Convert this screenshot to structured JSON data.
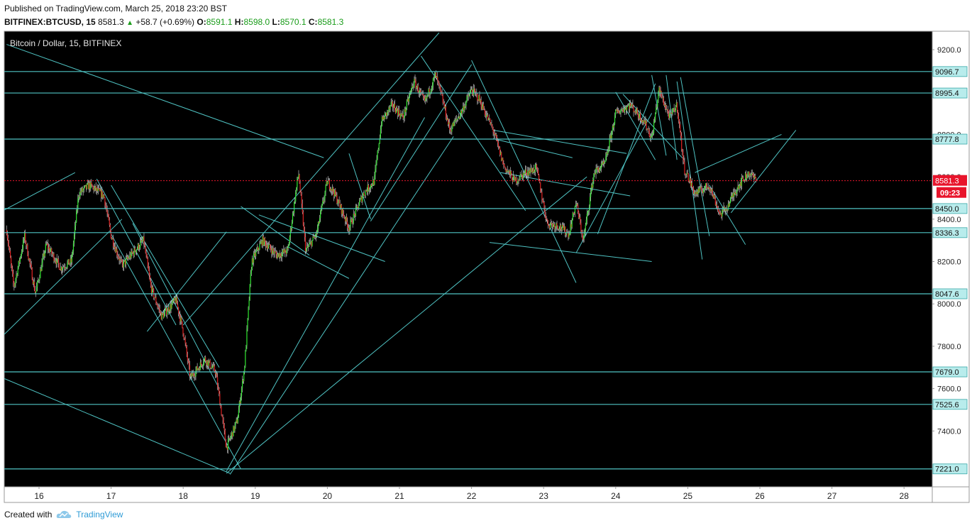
{
  "header": {
    "published": "Published on TradingView.com, March 25, 2018 23:20 BST",
    "symbol": "BITFINEX:BTCUSD, 15",
    "last": "8581.3",
    "change": "+58.7 (+0.69%)",
    "o_label": "O:",
    "o_value": "8591.1",
    "h_label": "H:",
    "h_value": "8598.0",
    "l_label": "L:",
    "l_value": "8570.1",
    "c_label": "C:",
    "c_value": "8581.3"
  },
  "footer": {
    "created_with": "Created with",
    "brand": "TradingView"
  },
  "colors": {
    "background": "#000000",
    "up": "#2ee62e",
    "down": "#e02020",
    "line": "#4fc3c3",
    "price_label": "#e8142b",
    "axis_text": "#222222"
  },
  "chart_data": {
    "type": "candlestick",
    "title": "Bitcoin / Dollar, 15, BITFINEX",
    "x_ticks": [
      "16",
      "17",
      "18",
      "19",
      "20",
      "21",
      "22",
      "23",
      "24",
      "25",
      "26",
      "27",
      "28"
    ],
    "y_ticks": [
      9200.0,
      8800.0,
      8600.0,
      8400.0,
      8200.0,
      8000.0,
      7800.0,
      7600.0,
      7400.0
    ],
    "y_tick_labels": [
      "9200.0",
      "8800.0",
      "8600.0",
      "8400.0",
      "8200.0",
      "8000.0",
      "7800.0",
      "7600.0",
      "7400.0"
    ],
    "ylim": [
      7195,
      9270
    ],
    "xlim": [
      15.5,
      28.5
    ],
    "horizontal_levels": [
      {
        "value": 9096.7,
        "label": "9096.7"
      },
      {
        "value": 8995.4,
        "label": "8995.4"
      },
      {
        "value": 8777.8,
        "label": "8777.8"
      },
      {
        "value": 8450.0,
        "label": "8450.0"
      },
      {
        "value": 8336.3,
        "label": "8336.3"
      },
      {
        "value": 8047.6,
        "label": "8047.6"
      },
      {
        "value": 7679.0,
        "label": "7679.0"
      },
      {
        "value": 7525.6,
        "label": "7525.6"
      },
      {
        "value": 7221.0,
        "label": "7221.0"
      }
    ],
    "current_price": {
      "value": 8581.3,
      "label": "8581.3",
      "countdown": "09:23"
    },
    "price_path": [
      [
        15.55,
        8350
      ],
      [
        15.65,
        8080
      ],
      [
        15.8,
        8320
      ],
      [
        15.95,
        8050
      ],
      [
        16.1,
        8280
      ],
      [
        16.3,
        8170
      ],
      [
        16.45,
        8200
      ],
      [
        16.55,
        8520
      ],
      [
        16.7,
        8560
      ],
      [
        16.9,
        8510
      ],
      [
        17.0,
        8320
      ],
      [
        17.15,
        8180
      ],
      [
        17.3,
        8240
      ],
      [
        17.45,
        8300
      ],
      [
        17.55,
        8080
      ],
      [
        17.7,
        7940
      ],
      [
        17.9,
        8020
      ],
      [
        18.0,
        7870
      ],
      [
        18.1,
        7650
      ],
      [
        18.3,
        7740
      ],
      [
        18.45,
        7680
      ],
      [
        18.6,
        7320
      ],
      [
        18.75,
        7450
      ],
      [
        18.85,
        7700
      ],
      [
        18.95,
        8200
      ],
      [
        19.1,
        8300
      ],
      [
        19.3,
        8230
      ],
      [
        19.45,
        8250
      ],
      [
        19.6,
        8620
      ],
      [
        19.7,
        8250
      ],
      [
        19.85,
        8330
      ],
      [
        20.0,
        8580
      ],
      [
        20.1,
        8520
      ],
      [
        20.3,
        8360
      ],
      [
        20.5,
        8520
      ],
      [
        20.65,
        8580
      ],
      [
        20.75,
        8860
      ],
      [
        20.9,
        8940
      ],
      [
        21.05,
        8880
      ],
      [
        21.2,
        9050
      ],
      [
        21.35,
        8950
      ],
      [
        21.5,
        9080
      ],
      [
        21.6,
        8960
      ],
      [
        21.7,
        8820
      ],
      [
        21.85,
        8900
      ],
      [
        22.0,
        9010
      ],
      [
        22.1,
        8970
      ],
      [
        22.3,
        8820
      ],
      [
        22.45,
        8650
      ],
      [
        22.6,
        8580
      ],
      [
        22.75,
        8620
      ],
      [
        22.9,
        8640
      ],
      [
        23.05,
        8380
      ],
      [
        23.2,
        8370
      ],
      [
        23.35,
        8330
      ],
      [
        23.45,
        8480
      ],
      [
        23.55,
        8300
      ],
      [
        23.7,
        8620
      ],
      [
        23.85,
        8660
      ],
      [
        24.0,
        8900
      ],
      [
        24.2,
        8940
      ],
      [
        24.4,
        8860
      ],
      [
        24.5,
        8780
      ],
      [
        24.6,
        9010
      ],
      [
        24.75,
        8880
      ],
      [
        24.85,
        8940
      ],
      [
        24.95,
        8640
      ],
      [
        25.1,
        8520
      ],
      [
        25.3,
        8560
      ],
      [
        25.45,
        8420
      ],
      [
        25.55,
        8460
      ],
      [
        25.7,
        8560
      ],
      [
        25.85,
        8620
      ],
      [
        25.95,
        8581.3
      ]
    ],
    "trend_lines": [
      [
        [
          15.55,
          9225
        ],
        [
          19.95,
          8690
        ]
      ],
      [
        [
          18.0,
          7900
        ],
        [
          21.55,
          9280
        ]
      ],
      [
        [
          15.5,
          7850
        ],
        [
          17.15,
          8400
        ]
      ],
      [
        [
          15.5,
          8440
        ],
        [
          16.5,
          8620
        ]
      ],
      [
        [
          15.5,
          7650
        ],
        [
          18.65,
          7200
        ]
      ],
      [
        [
          16.8,
          8590
        ],
        [
          17.9,
          7900
        ]
      ],
      [
        [
          17.0,
          8560
        ],
        [
          18.5,
          7700
        ]
      ],
      [
        [
          17.0,
          8330
        ],
        [
          18.8,
          7220
        ]
      ],
      [
        [
          17.3,
          8380
        ],
        [
          18.5,
          7600
        ]
      ],
      [
        [
          18.6,
          7210
        ],
        [
          21.35,
          8880
        ]
      ],
      [
        [
          18.65,
          7195
        ],
        [
          21.75,
          8790
        ]
      ],
      [
        [
          18.6,
          7200
        ],
        [
          23.6,
          8600
        ]
      ],
      [
        [
          17.5,
          7870
        ],
        [
          18.6,
          8340
        ]
      ],
      [
        [
          19.05,
          8420
        ],
        [
          20.8,
          8200
        ]
      ],
      [
        [
          19.45,
          8270
        ],
        [
          20.3,
          8120
        ]
      ],
      [
        [
          18.8,
          8460
        ],
        [
          19.75,
          8230
        ]
      ],
      [
        [
          20.3,
          8710
        ],
        [
          20.6,
          8400
        ]
      ],
      [
        [
          20.6,
          8390
        ],
        [
          22.0,
          9130
        ]
      ],
      [
        [
          21.3,
          9170
        ],
        [
          22.75,
          8440
        ]
      ],
      [
        [
          22.0,
          9150
        ],
        [
          23.45,
          8100
        ]
      ],
      [
        [
          22.3,
          8820
        ],
        [
          24.15,
          8710
        ]
      ],
      [
        [
          22.4,
          8620
        ],
        [
          24.2,
          8510
        ]
      ],
      [
        [
          22.3,
          8780
        ],
        [
          23.4,
          8690
        ]
      ],
      [
        [
          22.25,
          8290
        ],
        [
          24.5,
          8200
        ]
      ],
      [
        [
          23.45,
          8240
        ],
        [
          24.5,
          8900
        ]
      ],
      [
        [
          23.75,
          8330
        ],
        [
          24.55,
          9040
        ]
      ],
      [
        [
          24.0,
          9000
        ],
        [
          24.55,
          8680
        ]
      ],
      [
        [
          24.1,
          8990
        ],
        [
          24.95,
          8680
        ]
      ],
      [
        [
          24.5,
          9080
        ],
        [
          24.7,
          8700
        ]
      ],
      [
        [
          24.7,
          9080
        ],
        [
          24.85,
          8680
        ]
      ],
      [
        [
          24.85,
          9050
        ],
        [
          25.2,
          8210
        ]
      ],
      [
        [
          24.9,
          9070
        ],
        [
          25.3,
          8320
        ]
      ],
      [
        [
          25.3,
          8560
        ],
        [
          25.8,
          8280
        ]
      ],
      [
        [
          25.6,
          8430
        ],
        [
          26.5,
          8820
        ]
      ],
      [
        [
          25.1,
          8620
        ],
        [
          26.3,
          8800
        ]
      ]
    ]
  }
}
